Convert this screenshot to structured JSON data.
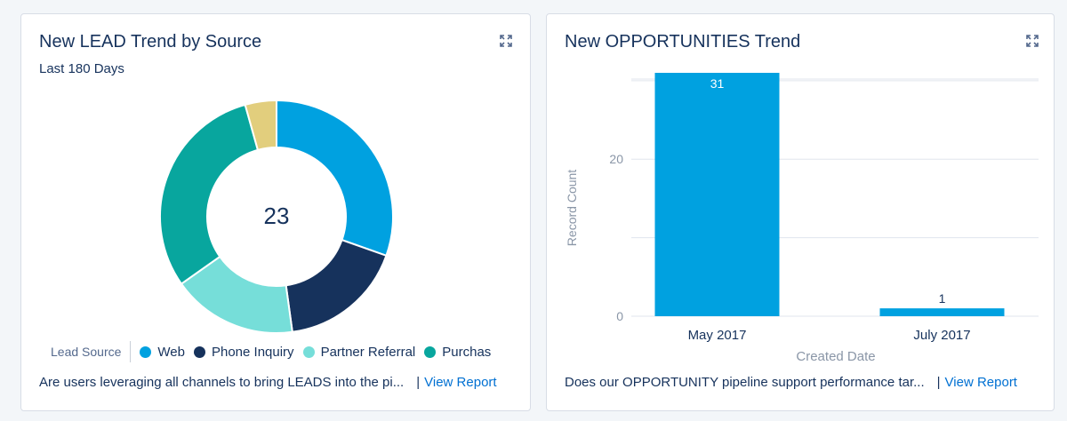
{
  "lead_card": {
    "title": "New LEAD Trend by Source",
    "subtitle": "Last 180 Days",
    "expand_icon": "expand-icon",
    "total": "23",
    "legend_title": "Lead Source",
    "footer_text": "Are users leveraging all channels to bring LEADS into the pi...",
    "footer_sep": "|",
    "footer_link": "View Report"
  },
  "opps_card": {
    "title": "New OPPORTUNITIES Trend",
    "expand_icon": "expand-icon",
    "footer_text": "Does our OPPORTUNITY pipeline support performance tar...",
    "footer_sep": "|",
    "footer_link": "View Report"
  },
  "chart_data": [
    {
      "type": "pie",
      "title": "New LEAD Trend by Source",
      "subtitle": "Last 180 Days",
      "center_label": "23",
      "legend_title": "Lead Source",
      "legend_position": "bottom",
      "slices": [
        {
          "name": "Web",
          "value": 7,
          "color": "#00a1e0"
        },
        {
          "name": "Phone Inquiry",
          "value": 4,
          "color": "#16325c"
        },
        {
          "name": "Partner Referral",
          "value": 4,
          "color": "#76ded9"
        },
        {
          "name": "Purchas",
          "value": 7,
          "color": "#08a69e"
        },
        {
          "name": "",
          "value": 1,
          "color": "#e2ce7d"
        }
      ]
    },
    {
      "type": "bar",
      "title": "New OPPORTUNITIES Trend",
      "categories": [
        "May 2017",
        "July 2017"
      ],
      "values": [
        31,
        1
      ],
      "xlabel": "Created Date",
      "ylabel": "Record Count",
      "yticks": [
        0,
        20
      ],
      "ylim": [
        0,
        31
      ],
      "grid": true,
      "color": "#00a1e0"
    }
  ]
}
